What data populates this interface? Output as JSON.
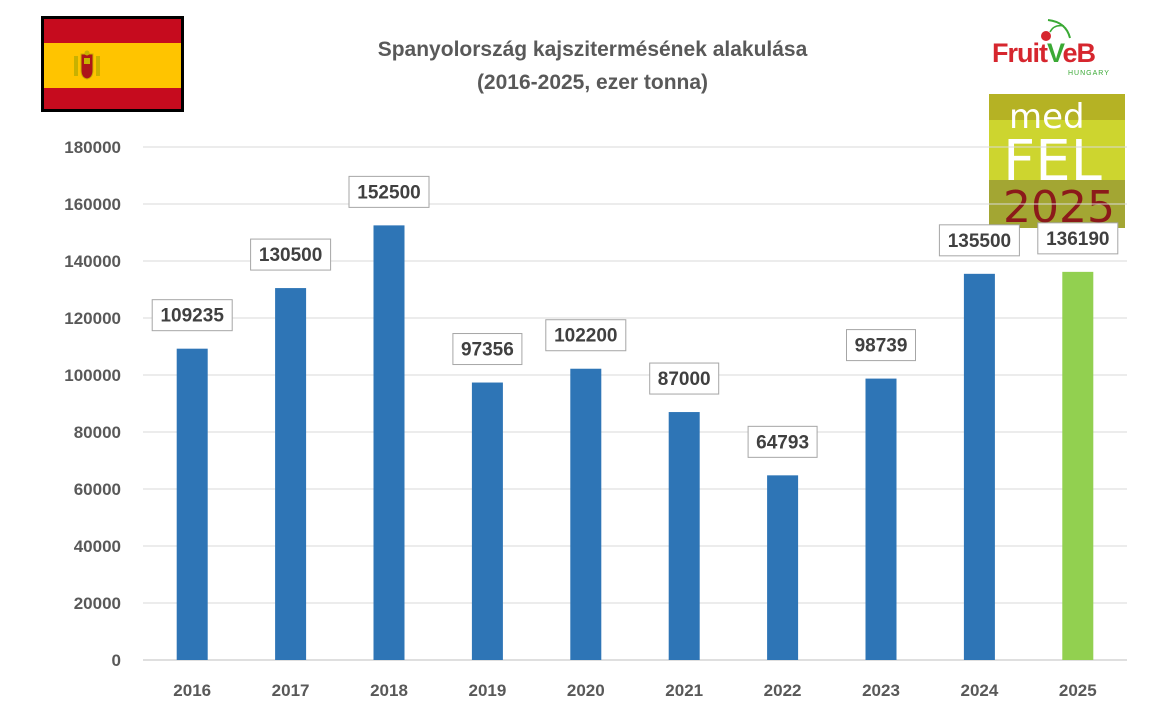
{
  "chart_data": {
    "type": "bar",
    "title": "Spanyolország kajszitermésének alakulása",
    "subtitle": "(2016-2025, ezer tonna)",
    "categories": [
      "2016",
      "2017",
      "2018",
      "2019",
      "2020",
      "2021",
      "2022",
      "2023",
      "2024",
      "2025"
    ],
    "values": [
      109235,
      130500,
      152500,
      97356,
      102200,
      87000,
      64793,
      98739,
      135500,
      136190
    ],
    "data_labels": [
      "109235",
      "130500",
      "152500",
      "97356",
      "102200",
      "87000",
      "64793",
      "98739",
      "135500",
      "136190"
    ],
    "ylim": [
      0,
      180000
    ],
    "yticks": [
      "0",
      "20000",
      "40000",
      "60000",
      "80000",
      "100000",
      "120000",
      "140000",
      "160000",
      "180000"
    ],
    "xlabel": "",
    "ylabel": "",
    "grid": true,
    "legend": "none",
    "colors": {
      "bar": "#2e75b6",
      "highlight_bar": "#92d050",
      "grid": "#d9d9d9",
      "axis_text": "#595959"
    },
    "highlight_index": 9
  },
  "logos": {
    "flag": "spain-flag-icon",
    "fruitveb": {
      "text_part1": "Fruit",
      "text_v": "V",
      "text_part2": "eB",
      "sub": "HUNGARY"
    },
    "medfel": {
      "line1": "med",
      "line2": "FEL",
      "line3": "2025"
    }
  }
}
